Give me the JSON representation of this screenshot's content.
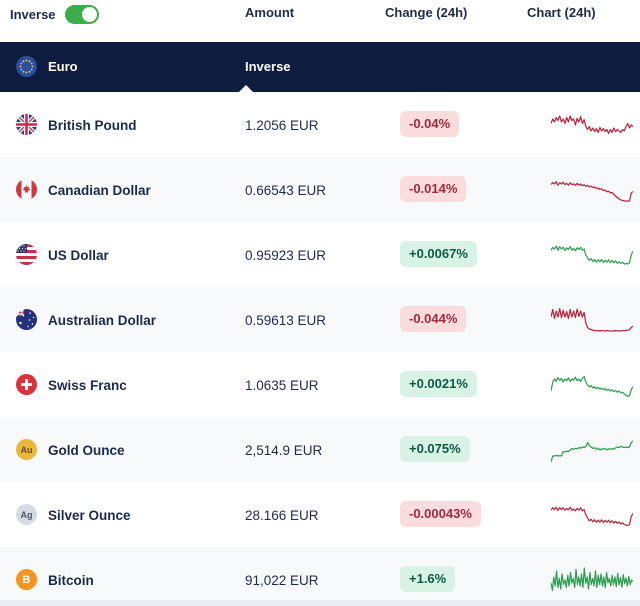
{
  "controls": {
    "inverse_label": "Inverse",
    "inverse_on": true
  },
  "columns": {
    "amount": "Amount",
    "change": "Change (24h)",
    "chart": "Chart (24h)"
  },
  "base": {
    "name": "Euro",
    "column_label": "Inverse",
    "icon": "eu-flag-icon"
  },
  "colors": {
    "navy_header": "#0e1c3f",
    "toggle_green": "#3bae4b",
    "badge_down_bg": "#fbdcdd",
    "badge_down_text": "#a02a40",
    "badge_up_bg": "#d8f2e5",
    "badge_up_text": "#0b5b43",
    "spark_down": "#bb2038",
    "spark_up": "#2a9d4e",
    "alt_row_bg": "#f7f9fb"
  },
  "rows": [
    {
      "name": "British Pound",
      "icon": "gbp-flag-icon",
      "amount": "1.2056 EUR",
      "change": "-0.04%",
      "direction": "down",
      "spark": [
        0.55,
        0.7,
        0.6,
        0.75,
        0.65,
        0.8,
        0.6,
        0.7,
        0.55,
        0.75,
        0.6,
        0.8,
        0.65,
        0.7,
        0.5,
        0.72,
        0.6,
        0.78,
        0.55,
        0.68,
        0.45,
        0.35,
        0.45,
        0.3,
        0.4,
        0.28,
        0.38,
        0.25,
        0.42,
        0.3,
        0.38,
        0.28,
        0.35,
        0.22,
        0.35,
        0.25,
        0.4,
        0.28,
        0.35,
        0.3,
        0.25,
        0.35,
        0.3,
        0.45,
        0.55,
        0.4,
        0.5,
        0.45
      ]
    },
    {
      "name": "Canadian Dollar",
      "icon": "cad-flag-icon",
      "amount": "0.66543 EUR",
      "change": "-0.014%",
      "direction": "down",
      "spark": [
        0.68,
        0.75,
        0.7,
        0.78,
        0.66,
        0.74,
        0.7,
        0.76,
        0.68,
        0.72,
        0.66,
        0.74,
        0.68,
        0.7,
        0.65,
        0.72,
        0.66,
        0.7,
        0.64,
        0.68,
        0.62,
        0.66,
        0.6,
        0.63,
        0.58,
        0.6,
        0.55,
        0.57,
        0.52,
        0.54,
        0.48,
        0.5,
        0.44,
        0.46,
        0.4,
        0.42,
        0.35,
        0.3,
        0.25,
        0.2,
        0.17,
        0.15,
        0.14,
        0.13,
        0.13,
        0.14,
        0.4,
        0.45
      ]
    },
    {
      "name": "US Dollar",
      "icon": "usd-flag-icon",
      "amount": "0.95923 EUR",
      "change": "+0.0067%",
      "direction": "up",
      "spark": [
        0.65,
        0.75,
        0.7,
        0.8,
        0.66,
        0.78,
        0.7,
        0.76,
        0.65,
        0.74,
        0.68,
        0.78,
        0.66,
        0.72,
        0.64,
        0.74,
        0.68,
        0.76,
        0.66,
        0.7,
        0.5,
        0.4,
        0.32,
        0.38,
        0.28,
        0.35,
        0.26,
        0.34,
        0.27,
        0.35,
        0.25,
        0.33,
        0.26,
        0.34,
        0.25,
        0.32,
        0.24,
        0.3,
        0.22,
        0.28,
        0.22,
        0.26,
        0.2,
        0.22,
        0.2,
        0.24,
        0.5,
        0.62
      ]
    },
    {
      "name": "Australian Dollar",
      "icon": "aud-flag-icon",
      "amount": "0.59613 EUR",
      "change": "-0.044%",
      "direction": "down",
      "spark": [
        0.6,
        0.85,
        0.55,
        0.8,
        0.6,
        0.88,
        0.58,
        0.82,
        0.6,
        0.78,
        0.55,
        0.85,
        0.6,
        0.8,
        0.58,
        0.86,
        0.62,
        0.8,
        0.6,
        0.75,
        0.4,
        0.25,
        0.2,
        0.18,
        0.16,
        0.15,
        0.14,
        0.15,
        0.13,
        0.15,
        0.14,
        0.13,
        0.15,
        0.14,
        0.13,
        0.14,
        0.13,
        0.15,
        0.14,
        0.13,
        0.14,
        0.15,
        0.14,
        0.15,
        0.16,
        0.18,
        0.25,
        0.3
      ]
    },
    {
      "name": "Swiss Franc",
      "icon": "chf-flag-icon",
      "amount": "1.0635 EUR",
      "change": "+0.0021%",
      "direction": "up",
      "spark": [
        0.3,
        0.6,
        0.7,
        0.62,
        0.75,
        0.65,
        0.72,
        0.6,
        0.7,
        0.64,
        0.74,
        0.62,
        0.7,
        0.66,
        0.76,
        0.64,
        0.7,
        0.62,
        0.72,
        0.78,
        0.6,
        0.5,
        0.44,
        0.48,
        0.4,
        0.44,
        0.38,
        0.42,
        0.36,
        0.4,
        0.34,
        0.38,
        0.32,
        0.36,
        0.3,
        0.34,
        0.28,
        0.32,
        0.26,
        0.3,
        0.24,
        0.26,
        0.2,
        0.16,
        0.12,
        0.14,
        0.35,
        0.45
      ]
    },
    {
      "name": "Gold Ounce",
      "icon": "gold-coin-icon",
      "icon_text": "Au",
      "amount": "2,514.9 EUR",
      "change": "+0.075%",
      "direction": "up",
      "spark": [
        0.1,
        0.3,
        0.3,
        0.32,
        0.3,
        0.31,
        0.3,
        0.45,
        0.44,
        0.46,
        0.45,
        0.5,
        0.55,
        0.52,
        0.56,
        0.54,
        0.58,
        0.56,
        0.6,
        0.58,
        0.62,
        0.75,
        0.65,
        0.6,
        0.55,
        0.58,
        0.52,
        0.56,
        0.5,
        0.54,
        0.52,
        0.56,
        0.5,
        0.54,
        0.52,
        0.55,
        0.53,
        0.57,
        0.6,
        0.58,
        0.62,
        0.6,
        0.58,
        0.6,
        0.58,
        0.6,
        0.75,
        0.8
      ]
    },
    {
      "name": "Silver Ounce",
      "icon": "silver-coin-icon",
      "icon_text": "Ag",
      "amount": "28.166 EUR",
      "change": "-0.00043%",
      "direction": "down",
      "spark": [
        0.66,
        0.74,
        0.68,
        0.76,
        0.65,
        0.75,
        0.68,
        0.74,
        0.66,
        0.72,
        0.67,
        0.76,
        0.66,
        0.7,
        0.64,
        0.72,
        0.66,
        0.74,
        0.64,
        0.68,
        0.5,
        0.4,
        0.3,
        0.36,
        0.27,
        0.34,
        0.26,
        0.33,
        0.26,
        0.34,
        0.25,
        0.32,
        0.26,
        0.33,
        0.24,
        0.31,
        0.23,
        0.29,
        0.22,
        0.27,
        0.2,
        0.24,
        0.18,
        0.16,
        0.15,
        0.18,
        0.45,
        0.55
      ]
    },
    {
      "name": "Bitcoin",
      "icon": "bitcoin-coin-icon",
      "icon_text": "B",
      "amount": "91,022 EUR",
      "change": "+1.6%",
      "direction": "up",
      "spark": [
        0.4,
        0.15,
        0.6,
        0.3,
        0.8,
        0.25,
        0.55,
        0.2,
        0.7,
        0.35,
        0.5,
        0.25,
        0.65,
        0.3,
        0.75,
        0.4,
        0.55,
        0.25,
        0.85,
        0.35,
        0.6,
        0.3,
        0.7,
        0.25,
        0.9,
        0.4,
        0.6,
        0.2,
        0.75,
        0.35,
        0.55,
        0.3,
        0.8,
        0.25,
        0.65,
        0.35,
        0.7,
        0.3,
        0.6,
        0.25,
        0.75,
        0.4,
        0.55,
        0.3,
        0.65,
        0.35,
        0.6,
        0.28,
        0.72,
        0.34,
        0.58,
        0.26,
        0.68,
        0.38,
        0.56,
        0.3,
        0.62,
        0.35,
        0.5,
        0.45
      ]
    }
  ]
}
